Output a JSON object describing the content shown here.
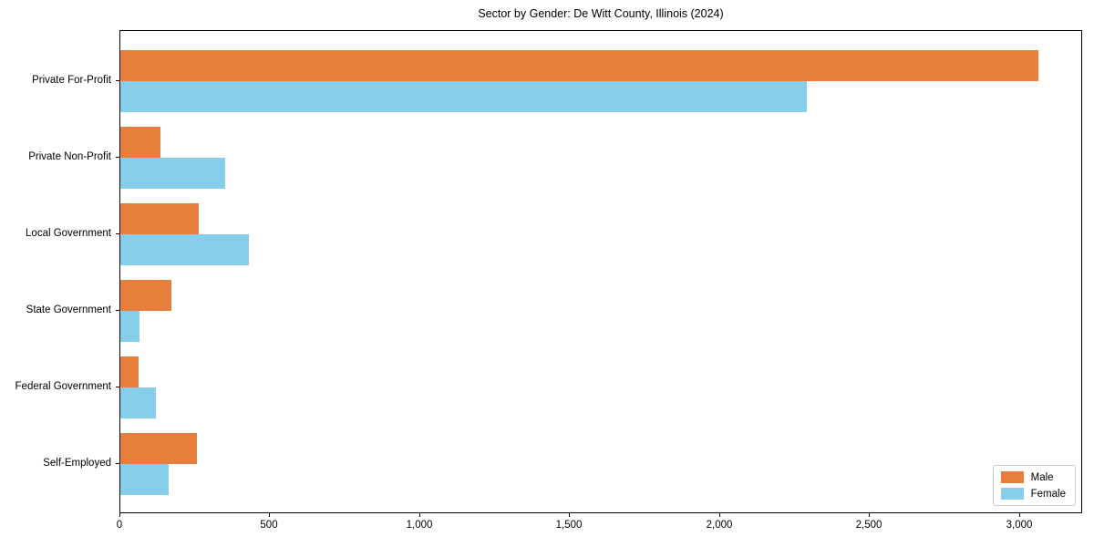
{
  "chart_data": {
    "type": "bar",
    "orientation": "horizontal",
    "title": "Sector by Gender: De Witt County, Illinois (2024)",
    "categories": [
      "Private For-Profit",
      "Private Non-Profit",
      "Local Government",
      "State Government",
      "Federal Government",
      "Self-Employed"
    ],
    "series": [
      {
        "name": "Male",
        "color": "#e87e3b",
        "values": [
          3060,
          135,
          260,
          170,
          60,
          255
        ]
      },
      {
        "name": "Female",
        "color": "#87ceeb",
        "values": [
          2290,
          350,
          430,
          65,
          120,
          160
        ]
      }
    ],
    "xlabel": "",
    "ylabel": "",
    "xlim": [
      0,
      3210
    ],
    "xticks": [
      0,
      500,
      1000,
      1500,
      2000,
      2500,
      3000
    ],
    "xtick_labels": [
      "0",
      "500",
      "1,000",
      "1,500",
      "2,000",
      "2,500",
      "3,000"
    ],
    "grid": false,
    "legend_position": "lower right",
    "frame": "full-box"
  }
}
